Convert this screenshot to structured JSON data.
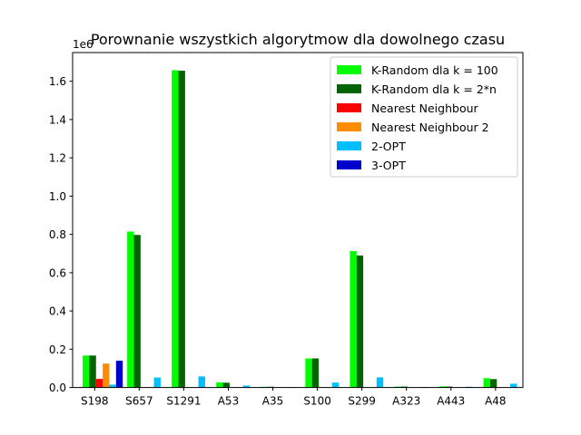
{
  "chart_data": {
    "type": "bar",
    "title": "Porownanie wszystkich algorytmow dla dowolnego czasu",
    "xlabel": "",
    "ylabel": "",
    "y_scale_label": "1e6",
    "ylim": [
      0,
      1.75
    ],
    "y_ticks": [
      0.0,
      0.2,
      0.4,
      0.6,
      0.8,
      1.0,
      1.2,
      1.4,
      1.6
    ],
    "y_tick_labels": [
      "0.0",
      "0.2",
      "0.4",
      "0.6",
      "0.8",
      "1.0",
      "1.2",
      "1.4",
      "1.6"
    ],
    "grid": false,
    "legend_position": "top-right",
    "categories": [
      "S198",
      "S657",
      "S1291",
      "A53",
      "A35",
      "S100",
      "S299",
      "A323",
      "A443",
      "A48"
    ],
    "series": [
      {
        "name": "K-Random dla k = 100",
        "color": "#00ff00",
        "values": [
          0.167,
          0.815,
          1.658,
          0.027,
          0.004,
          0.152,
          0.713,
          0.005,
          0.006,
          0.049
        ]
      },
      {
        "name": "K-Random dla k = 2*n",
        "color": "#006400",
        "values": [
          0.167,
          0.797,
          1.655,
          0.025,
          0.004,
          0.152,
          0.69,
          0.005,
          0.005,
          0.044
        ]
      },
      {
        "name": "Nearest Neighbour",
        "color": "#ff0000",
        "values": [
          0.045,
          0.0,
          0.0,
          0.0,
          0.0,
          0.0,
          0.0,
          0.0,
          0.0,
          0.0
        ]
      },
      {
        "name": "Nearest Neighbour 2",
        "color": "#ff8c00",
        "values": [
          0.125,
          0.0,
          0.0,
          0.0,
          0.0,
          0.0,
          0.0,
          0.0,
          0.0,
          0.0
        ]
      },
      {
        "name": "2-OPT",
        "color": "#00bfff",
        "values": [
          0.015,
          0.052,
          0.058,
          0.01,
          0.002,
          0.026,
          0.053,
          0.003,
          0.004,
          0.02
        ]
      },
      {
        "name": "3-OPT",
        "color": "#0000cd",
        "values": [
          0.14,
          0.0,
          0.0,
          0.0,
          0.0,
          0.0,
          0.0,
          0.0,
          0.0,
          0.0
        ]
      }
    ]
  }
}
